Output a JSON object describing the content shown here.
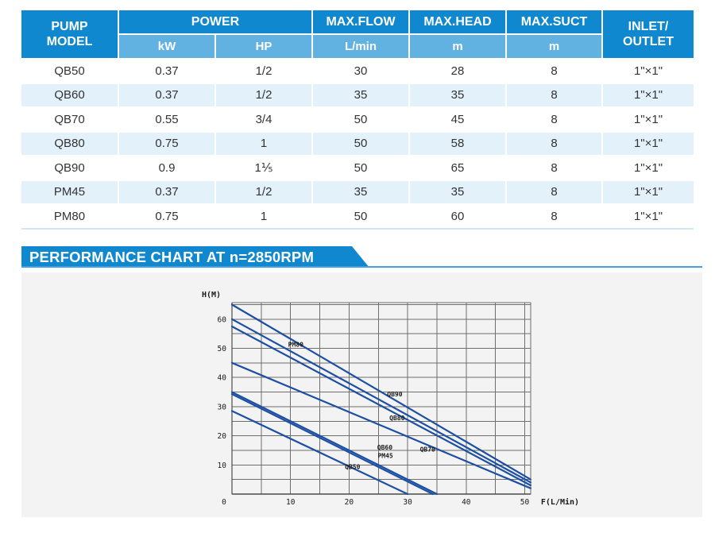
{
  "colors": {
    "header_dark_blue": "#1088cf",
    "header_light_blue": "#61b1e1",
    "row_stripe": "#e3f1fa",
    "banner_blue": "#1088cf",
    "chart_line_blue": "#1d4fa3",
    "card_background": "#f2f3f2"
  },
  "table": {
    "header": {
      "pump_model": "PUMP\nMODEL",
      "power": "POWER",
      "kw": "kW",
      "hp": "HP",
      "max_flow": "MAX.FLOW",
      "max_flow_unit": "L/min",
      "max_head": "MAX.HEAD",
      "max_head_unit": "m",
      "max_suct": "MAX.SUCT",
      "max_suct_unit": "m",
      "inlet_outlet": "INLET/\nOUTLET"
    },
    "rows": [
      {
        "model": "QB50",
        "kw": "0.37",
        "hp": "1/2",
        "flow": "30",
        "head": "28",
        "suct": "8",
        "inlet": "1\"×1\""
      },
      {
        "model": "QB60",
        "kw": "0.37",
        "hp": "1/2",
        "flow": "35",
        "head": "35",
        "suct": "8",
        "inlet": "1\"×1\""
      },
      {
        "model": "QB70",
        "kw": "0.55",
        "hp": "3/4",
        "flow": "50",
        "head": "45",
        "suct": "8",
        "inlet": "1\"×1\""
      },
      {
        "model": "QB80",
        "kw": "0.75",
        "hp": "1",
        "flow": "50",
        "head": "58",
        "suct": "8",
        "inlet": "1\"×1\""
      },
      {
        "model": "QB90",
        "kw": "0.9",
        "hp": "1⅕",
        "flow": "50",
        "head": "65",
        "suct": "8",
        "inlet": "1\"×1\""
      },
      {
        "model": "PM45",
        "kw": "0.37",
        "hp": "1/2",
        "flow": "35",
        "head": "35",
        "suct": "8",
        "inlet": "1\"×1\""
      },
      {
        "model": "PM80",
        "kw": "0.75",
        "hp": "1",
        "flow": "50",
        "head": "60",
        "suct": "8",
        "inlet": "1\"×1\""
      }
    ]
  },
  "banner": {
    "title": "PERFORMANCE CHART AT n=2850RPM"
  },
  "chart_data": {
    "type": "line",
    "title": "PERFORMANCE CHART AT n=2850RPM",
    "xlabel": "F(L/Min)",
    "ylabel": "H(M)",
    "xlim": [
      0,
      51
    ],
    "ylim": [
      0,
      65.7
    ],
    "x_ticks": [
      0,
      10,
      20,
      30,
      40,
      50
    ],
    "y_ticks": [
      0,
      10,
      20,
      30,
      40,
      50,
      60
    ],
    "grid_step": 5,
    "grid": true,
    "line_color": "#1d4fa3",
    "series": [
      {
        "name": "QB90",
        "points": [
          [
            0,
            65
          ],
          [
            51,
            5
          ]
        ],
        "label_pos": [
          27.8,
          33.5
        ]
      },
      {
        "name": "PM80",
        "points": [
          [
            0,
            60
          ],
          [
            51,
            4
          ]
        ],
        "label_pos": [
          10.9,
          50.5
        ]
      },
      {
        "name": "QB80",
        "points": [
          [
            0,
            57.5
          ],
          [
            51,
            3
          ]
        ],
        "label_pos": [
          28.2,
          25.3
        ]
      },
      {
        "name": "QB70",
        "points": [
          [
            0,
            45
          ],
          [
            51,
            2
          ]
        ],
        "label_pos": [
          33.4,
          14.6
        ]
      },
      {
        "name": "QB60",
        "points": [
          [
            0,
            35
          ],
          [
            35,
            0
          ]
        ],
        "label_pos": [
          26.1,
          15.3
        ]
      },
      {
        "name": "PM45",
        "points": [
          [
            0,
            34.3
          ],
          [
            34.3,
            0
          ]
        ],
        "label_pos": [
          26.2,
          12.4
        ]
      },
      {
        "name": "QB50",
        "points": [
          [
            0,
            28.5
          ],
          [
            30,
            0
          ]
        ],
        "label_pos": [
          20.6,
          8.6
        ]
      }
    ]
  }
}
